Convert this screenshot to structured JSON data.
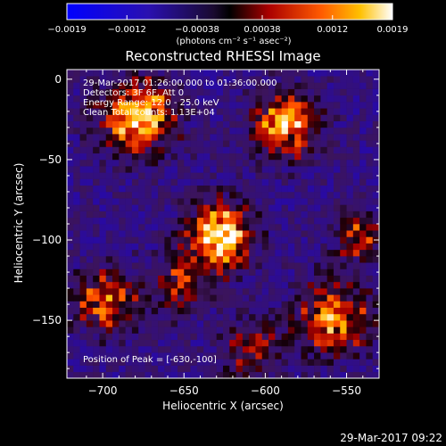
{
  "chart_data": {
    "type": "heatmap",
    "title": "Reconstructed RHESSI Image",
    "xlabel": "Heliocentric X (arcsec)",
    "ylabel": "Heliocentric Y (arcsec)",
    "xlim": [
      -722,
      -530
    ],
    "ylim": [
      -186,
      6
    ],
    "x_ticks": [
      -700,
      -650,
      -600,
      -550
    ],
    "x_tick_labels": [
      "−700",
      "−650",
      "−600",
      "−550"
    ],
    "y_ticks": [
      0,
      -50,
      -100,
      -150
    ],
    "y_tick_labels": [
      "0",
      "−50",
      "−100",
      "−150"
    ],
    "colorbar": {
      "min": -0.0019,
      "max": 0.0019,
      "ticks": [
        -0.0019,
        -0.0012,
        -0.00038,
        0.00038,
        0.0012,
        0.0019
      ],
      "tick_labels": [
        "−0.0019",
        "−0.0012",
        "−0.00038",
        "0.00038",
        "0.0012",
        "0.0019"
      ],
      "unit_label": "(photons cm⁻² s⁻¹ asec⁻²)"
    },
    "sources": [
      {
        "x": -630,
        "y": -100,
        "sigma": 14,
        "amp": 1.0
      },
      {
        "x": -680,
        "y": -25,
        "sigma": 16,
        "amp": 0.85
      },
      {
        "x": -590,
        "y": -30,
        "sigma": 14,
        "amp": 0.8
      },
      {
        "x": -655,
        "y": -130,
        "sigma": 12,
        "amp": 0.45
      },
      {
        "x": -700,
        "y": -140,
        "sigma": 14,
        "amp": 0.6
      },
      {
        "x": -560,
        "y": -150,
        "sigma": 16,
        "amp": 0.7
      },
      {
        "x": -545,
        "y": -100,
        "sigma": 10,
        "amp": 0.55
      },
      {
        "x": -610,
        "y": -170,
        "sigma": 12,
        "amp": 0.5
      }
    ],
    "peak": {
      "x": -630,
      "y": -100
    }
  },
  "annotations": {
    "time_range": "29-Mar-2017 01:26:00.000 to 01:36:00.000",
    "detectors": "Detectors: 3F 6F, Att 0",
    "energy": "Energy Range: 12.0 - 25.0 keV",
    "clean": "Clean    Total counts: 1.13E+04",
    "peak_label": "Position of Peak = [-630,-100]"
  },
  "timestamp": "29-Mar-2017 09:22"
}
